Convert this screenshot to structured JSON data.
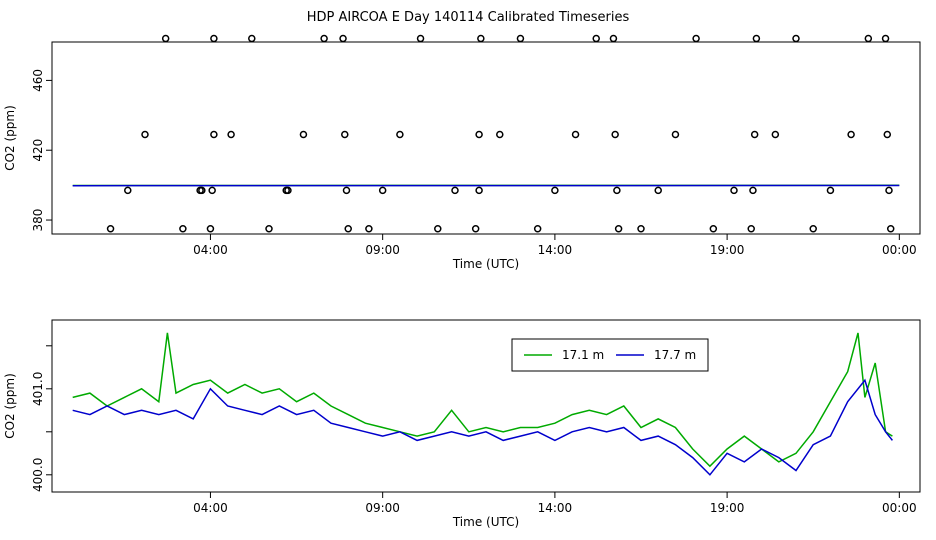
{
  "title": "HDP AIRCOA E  Day 140114  Calibrated Timeseries",
  "chart_data": [
    {
      "type": "scatter",
      "xlabel": "Time (UTC)",
      "ylabel": "CO2 (ppm)",
      "x_ticks": [
        {
          "hours": 4,
          "label": "04:00"
        },
        {
          "hours": 9,
          "label": "09:00"
        },
        {
          "hours": 14,
          "label": "14:00"
        },
        {
          "hours": 19,
          "label": "19:00"
        },
        {
          "hours": 24,
          "label": "00:00"
        }
      ],
      "y_ticks": [
        {
          "value": 380,
          "label": "380"
        },
        {
          "value": 420,
          "label": "420"
        },
        {
          "value": 460,
          "label": "460"
        }
      ],
      "xlim": [
        -0.6,
        24.6
      ],
      "ylim": [
        372,
        482
      ],
      "grid": false,
      "calibration_points": [
        {
          "time": 1.1,
          "co2": 375
        },
        {
          "time": 1.6,
          "co2": 397
        },
        {
          "time": 2.1,
          "co2": 429
        },
        {
          "time": 2.7,
          "co2": 484
        },
        {
          "time": 3.2,
          "co2": 375
        },
        {
          "time": 3.7,
          "co2": 397
        },
        {
          "time": 3.75,
          "co2": 397
        },
        {
          "time": 4.0,
          "co2": 375
        },
        {
          "time": 4.05,
          "co2": 397
        },
        {
          "time": 4.1,
          "co2": 429
        },
        {
          "time": 4.1,
          "co2": 484
        },
        {
          "time": 4.6,
          "co2": 429
        },
        {
          "time": 5.2,
          "co2": 484
        },
        {
          "time": 5.7,
          "co2": 375
        },
        {
          "time": 6.2,
          "co2": 397
        },
        {
          "time": 6.25,
          "co2": 397
        },
        {
          "time": 6.7,
          "co2": 429
        },
        {
          "time": 7.3,
          "co2": 484
        },
        {
          "time": 7.85,
          "co2": 484
        },
        {
          "time": 7.9,
          "co2": 429
        },
        {
          "time": 7.95,
          "co2": 397
        },
        {
          "time": 8.0,
          "co2": 375
        },
        {
          "time": 8.6,
          "co2": 375
        },
        {
          "time": 9.0,
          "co2": 397
        },
        {
          "time": 9.5,
          "co2": 429
        },
        {
          "time": 10.1,
          "co2": 484
        },
        {
          "time": 10.6,
          "co2": 375
        },
        {
          "time": 11.1,
          "co2": 397
        },
        {
          "time": 11.7,
          "co2": 375
        },
        {
          "time": 11.8,
          "co2": 397
        },
        {
          "time": 11.8,
          "co2": 429
        },
        {
          "time": 11.85,
          "co2": 484
        },
        {
          "time": 12.4,
          "co2": 429
        },
        {
          "time": 13.0,
          "co2": 484
        },
        {
          "time": 13.5,
          "co2": 375
        },
        {
          "time": 14.0,
          "co2": 397
        },
        {
          "time": 14.6,
          "co2": 429
        },
        {
          "time": 15.2,
          "co2": 484
        },
        {
          "time": 15.7,
          "co2": 484
        },
        {
          "time": 15.75,
          "co2": 429
        },
        {
          "time": 15.8,
          "co2": 397
        },
        {
          "time": 15.85,
          "co2": 375
        },
        {
          "time": 16.5,
          "co2": 375
        },
        {
          "time": 17.0,
          "co2": 397
        },
        {
          "time": 17.5,
          "co2": 429
        },
        {
          "time": 18.1,
          "co2": 484
        },
        {
          "time": 18.6,
          "co2": 375
        },
        {
          "time": 19.2,
          "co2": 397
        },
        {
          "time": 19.7,
          "co2": 375
        },
        {
          "time": 19.75,
          "co2": 397
        },
        {
          "time": 19.8,
          "co2": 429
        },
        {
          "time": 19.85,
          "co2": 484
        },
        {
          "time": 20.4,
          "co2": 429
        },
        {
          "time": 21.0,
          "co2": 484
        },
        {
          "time": 21.5,
          "co2": 375
        },
        {
          "time": 22.0,
          "co2": 397
        },
        {
          "time": 22.6,
          "co2": 429
        },
        {
          "time": 23.1,
          "co2": 484
        },
        {
          "time": 23.6,
          "co2": 484
        },
        {
          "time": 23.65,
          "co2": 429
        },
        {
          "time": 23.7,
          "co2": 397
        },
        {
          "time": 23.75,
          "co2": 375
        }
      ],
      "series": [
        {
          "color": "#00aa00",
          "time": [
            0.0,
            24.0
          ],
          "co2": [
            399.8,
            399.9
          ]
        },
        {
          "color": "#0000cc",
          "time": [
            0.0,
            24.0
          ],
          "co2": [
            399.7,
            399.8
          ]
        }
      ]
    },
    {
      "type": "line",
      "xlabel": "Time (UTC)",
      "ylabel": "CO2 (ppm)",
      "x_ticks": [
        {
          "hours": 4,
          "label": "04:00"
        },
        {
          "hours": 9,
          "label": "09:00"
        },
        {
          "hours": 14,
          "label": "14:00"
        },
        {
          "hours": 19,
          "label": "19:00"
        },
        {
          "hours": 24,
          "label": "00:00"
        }
      ],
      "y_ticks": [
        {
          "value": 400.0,
          "label": "400.0"
        },
        {
          "value": 400.5,
          "label": ""
        },
        {
          "value": 401.0,
          "label": "401.0"
        },
        {
          "value": 401.5,
          "label": ""
        }
      ],
      "xlim": [
        -0.6,
        24.6
      ],
      "ylim": [
        399.8,
        401.8
      ],
      "grid": false,
      "legend_position": "top-right",
      "series": [
        {
          "name": "17.1 m",
          "color": "#00aa00",
          "time": [
            0.0,
            0.5,
            1.0,
            1.5,
            2.0,
            2.5,
            2.75,
            3.0,
            3.5,
            4.0,
            4.5,
            5.0,
            5.5,
            6.0,
            6.5,
            7.0,
            7.5,
            8.0,
            8.5,
            9.0,
            9.5,
            10.0,
            10.5,
            11.0,
            11.5,
            12.0,
            12.5,
            13.0,
            13.5,
            14.0,
            14.5,
            15.0,
            15.5,
            16.0,
            16.5,
            17.0,
            17.5,
            18.0,
            18.5,
            19.0,
            19.5,
            20.0,
            20.5,
            21.0,
            21.5,
            22.0,
            22.5,
            22.8,
            23.0,
            23.3,
            23.6,
            23.8
          ],
          "co2": [
            400.9,
            400.95,
            400.8,
            400.9,
            401.0,
            400.85,
            401.65,
            400.95,
            401.05,
            401.1,
            400.95,
            401.05,
            400.95,
            401.0,
            400.85,
            400.95,
            400.8,
            400.7,
            400.6,
            400.55,
            400.5,
            400.45,
            400.5,
            400.75,
            400.5,
            400.55,
            400.5,
            400.55,
            400.55,
            400.6,
            400.7,
            400.75,
            400.7,
            400.8,
            400.55,
            400.65,
            400.55,
            400.3,
            400.1,
            400.3,
            400.45,
            400.3,
            400.15,
            400.25,
            400.5,
            400.85,
            401.2,
            401.65,
            400.9,
            401.3,
            400.5,
            400.45
          ]
        },
        {
          "name": "17.7 m",
          "color": "#0000cc",
          "time": [
            0.0,
            0.5,
            1.0,
            1.5,
            2.0,
            2.5,
            3.0,
            3.5,
            4.0,
            4.5,
            5.0,
            5.5,
            6.0,
            6.5,
            7.0,
            7.5,
            8.0,
            8.5,
            9.0,
            9.5,
            10.0,
            10.5,
            11.0,
            11.5,
            12.0,
            12.5,
            13.0,
            13.5,
            14.0,
            14.5,
            15.0,
            15.5,
            16.0,
            16.5,
            17.0,
            17.5,
            18.0,
            18.5,
            19.0,
            19.5,
            20.0,
            20.5,
            21.0,
            21.5,
            22.0,
            22.5,
            23.0,
            23.3,
            23.6,
            23.8
          ],
          "co2": [
            400.75,
            400.7,
            400.8,
            400.7,
            400.75,
            400.7,
            400.75,
            400.65,
            401.0,
            400.8,
            400.75,
            400.7,
            400.8,
            400.7,
            400.75,
            400.6,
            400.55,
            400.5,
            400.45,
            400.5,
            400.4,
            400.45,
            400.5,
            400.45,
            400.5,
            400.4,
            400.45,
            400.5,
            400.4,
            400.5,
            400.55,
            400.5,
            400.55,
            400.4,
            400.45,
            400.35,
            400.2,
            400.0,
            400.25,
            400.15,
            400.3,
            400.2,
            400.05,
            400.35,
            400.45,
            400.85,
            401.1,
            400.7,
            400.5,
            400.4
          ]
        }
      ]
    }
  ]
}
